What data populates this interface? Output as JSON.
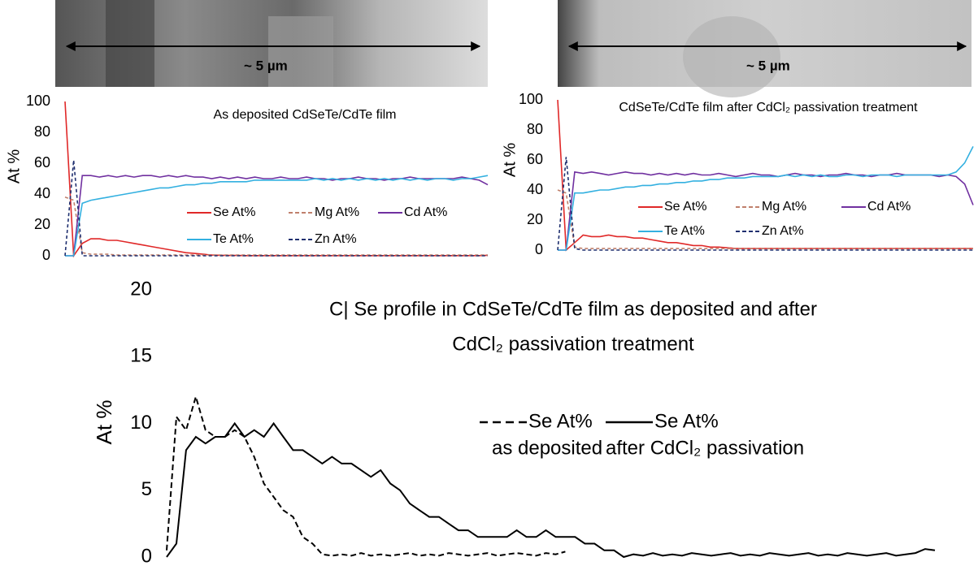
{
  "micrographs": [
    {
      "scale_label": "~ 5 µm"
    },
    {
      "scale_label": "~ 5 µm"
    }
  ],
  "chart_data": [
    {
      "type": "line",
      "title": [
        "As deposited CdSeTe/CdTe film"
      ],
      "ylabel": "At %",
      "ylim": [
        0,
        100
      ],
      "yticks": [
        0,
        20,
        40,
        60,
        80,
        100
      ],
      "series": [
        {
          "name": "Se At%",
          "color": "#e02828",
          "line_style": "solid",
          "values": [
            100,
            0,
            8,
            11,
            11,
            10,
            10,
            9,
            8,
            7,
            6,
            5,
            4,
            3,
            2,
            1.5,
            1,
            0.5,
            0.3,
            0.2,
            0.2,
            0.1,
            0.1,
            0.1,
            0.1,
            0.1,
            0.1,
            0.1,
            0.1,
            0.1,
            0.1,
            0.1,
            0.1,
            0.1,
            0.1,
            0.1,
            0.1,
            0.1,
            0.1,
            0.1,
            0.1,
            0.1,
            0.1,
            0.1,
            0.1,
            0.1,
            0.1,
            0.1,
            0.1,
            0.3
          ]
        },
        {
          "name": "Mg At%",
          "color": "#c0806c",
          "line_style": "dashed",
          "values": [
            38,
            36,
            2,
            1,
            1,
            1,
            0.5,
            0.5,
            0.5,
            0.5,
            0.5,
            0.5,
            0.5,
            0.5,
            0.5,
            0.5,
            0.5,
            0.5,
            0.5,
            0.5,
            0.5,
            0.5,
            0.5,
            0.5,
            0.5,
            0.5,
            0.5,
            0.5,
            0.5,
            0.5,
            0.5,
            0.5,
            0.5,
            0.5,
            0.5,
            0.5,
            0.5,
            0.5,
            0.5,
            0.5,
            0.5,
            0.5,
            0.5,
            0.5,
            0.5,
            0.5,
            0.5,
            0.5,
            0.5,
            0.5
          ]
        },
        {
          "name": "Cd At%",
          "color": "#7030a0",
          "line_style": "solid",
          "values": [
            0,
            0,
            52,
            52,
            51,
            52,
            51,
            52,
            51,
            52,
            52,
            51,
            52,
            51,
            52,
            51,
            51,
            50,
            51,
            50,
            51,
            50,
            51,
            50,
            50,
            51,
            50,
            50,
            51,
            50,
            50,
            49,
            50,
            50,
            51,
            50,
            50,
            49,
            50,
            50,
            51,
            50,
            50,
            50,
            50,
            50,
            51,
            50,
            49,
            46
          ]
        },
        {
          "name": "Te At%",
          "color": "#33b0e0",
          "line_style": "solid",
          "values": [
            0,
            0,
            34,
            36,
            37,
            38,
            39,
            40,
            41,
            42,
            43,
            44,
            44,
            45,
            46,
            46,
            47,
            47,
            48,
            48,
            48,
            48,
            49,
            49,
            49,
            49,
            49,
            49,
            49,
            50,
            49,
            50,
            49,
            50,
            49,
            50,
            49,
            50,
            49,
            50,
            49,
            50,
            49,
            50,
            50,
            49,
            50,
            50,
            51,
            52
          ]
        },
        {
          "name": "Zn At%",
          "color": "#1f2f6f",
          "line_style": "dashed",
          "values": [
            0,
            62,
            0,
            0,
            0,
            0,
            0,
            0,
            0,
            0,
            0,
            0,
            0,
            0,
            0,
            0,
            0,
            0,
            0,
            0,
            0,
            0,
            0,
            0,
            0,
            0,
            0,
            0,
            0,
            0,
            0,
            0,
            0,
            0,
            0,
            0,
            0,
            0,
            0,
            0,
            0,
            0,
            0,
            0,
            0,
            0,
            0,
            0,
            0,
            0
          ]
        }
      ]
    },
    {
      "type": "line",
      "title": [
        "CdSeTe/CdTe film after CdCl₂ passivation treatment"
      ],
      "ylabel": "At %",
      "ylim": [
        0,
        100
      ],
      "yticks": [
        0,
        20,
        40,
        60,
        80,
        100
      ],
      "series": [
        {
          "name": "Se At%",
          "color": "#e02828",
          "line_style": "solid",
          "values": [
            100,
            0,
            5,
            10,
            9,
            9,
            10,
            9,
            9,
            8,
            8,
            7,
            6,
            5,
            5,
            4,
            3,
            3,
            2,
            2,
            1.5,
            1,
            1,
            1,
            1,
            1,
            1,
            1,
            1,
            1,
            1,
            1,
            1,
            1,
            1,
            1,
            1,
            1,
            1,
            1,
            1,
            1,
            1,
            1,
            1,
            1,
            1,
            1,
            1,
            1
          ]
        },
        {
          "name": "Mg At%",
          "color": "#c0806c",
          "line_style": "dashed",
          "values": [
            40,
            38,
            2,
            1,
            1,
            1,
            1,
            1,
            1,
            1,
            1,
            1,
            1,
            1,
            1,
            1,
            1,
            1,
            1,
            1,
            1,
            1,
            1,
            1,
            1,
            1,
            1,
            1,
            1,
            1,
            1,
            1,
            1,
            1,
            1,
            1,
            1,
            1,
            1,
            1,
            1,
            1,
            1,
            1,
            1,
            1,
            1,
            1,
            1,
            1
          ]
        },
        {
          "name": "Cd At%",
          "color": "#7030a0",
          "line_style": "solid",
          "values": [
            0,
            0,
            52,
            51,
            52,
            51,
            50,
            51,
            52,
            51,
            51,
            50,
            51,
            50,
            51,
            50,
            51,
            50,
            50,
            51,
            50,
            49,
            50,
            51,
            50,
            50,
            49,
            50,
            51,
            50,
            50,
            49,
            50,
            50,
            51,
            50,
            50,
            49,
            50,
            50,
            51,
            50,
            50,
            50,
            50,
            49,
            50,
            49,
            44,
            30
          ]
        },
        {
          "name": "Te At%",
          "color": "#33b0e0",
          "line_style": "solid",
          "values": [
            0,
            0,
            38,
            38,
            39,
            40,
            40,
            41,
            42,
            42,
            43,
            43,
            44,
            44,
            45,
            45,
            46,
            46,
            47,
            47,
            48,
            48,
            48,
            49,
            49,
            49,
            49,
            50,
            49,
            50,
            49,
            50,
            49,
            49,
            50,
            50,
            49,
            50,
            50,
            50,
            49,
            50,
            50,
            50,
            50,
            50,
            50,
            52,
            58,
            69
          ]
        },
        {
          "name": "Zn At%",
          "color": "#1f2f6f",
          "line_style": "dashed",
          "values": [
            0,
            62,
            1,
            0,
            0,
            0,
            0,
            0,
            0,
            0,
            0,
            0,
            0,
            0,
            0,
            0,
            0,
            0,
            0,
            0,
            0,
            0,
            0,
            0,
            0,
            0,
            0,
            0,
            0,
            0,
            0,
            0,
            0,
            0,
            0,
            0,
            0,
            0,
            0,
            0,
            0,
            0,
            0,
            0,
            0,
            0,
            0,
            0,
            0,
            0
          ]
        }
      ]
    },
    {
      "type": "line",
      "title": [
        "C|  Se  profile in CdSeTe/CdTe film as deposited and after",
        "CdCl₂ passivation treatment"
      ],
      "ylabel": "At %",
      "ylim": [
        0,
        20
      ],
      "yticks": [
        0,
        5,
        10,
        15,
        20
      ],
      "series": [
        {
          "name": "Se At%",
          "legend_sublabel": "as deposited",
          "color": "#000000",
          "line_style": "dashed",
          "values": [
            0.5,
            10.5,
            9.5,
            12,
            9.5,
            9,
            9,
            9.5,
            9,
            7.5,
            5.5,
            4.5,
            3.5,
            3,
            1.5,
            1,
            0.2,
            0.1,
            0.2,
            0.1,
            0.3,
            0.1,
            0.2,
            0.1,
            0.2,
            0.3,
            0.1,
            0.2,
            0.1,
            0.3,
            0.2,
            0.1,
            0.2,
            0.3,
            0.1,
            0.2,
            0.3,
            0.2,
            0.1,
            0.3,
            0.2,
            0.4,
            null,
            null,
            null,
            null,
            null,
            null,
            null,
            null,
            null,
            null,
            null,
            null,
            null,
            null,
            null,
            null,
            null,
            null,
            null,
            null,
            null,
            null,
            null,
            null,
            null,
            null,
            null,
            null,
            null,
            null,
            null,
            null,
            null,
            null,
            null,
            null,
            null,
            null
          ]
        },
        {
          "name": "Se At%",
          "legend_sublabel": "after CdCl₂ passivation",
          "color": "#000000",
          "line_style": "solid",
          "values": [
            0,
            1,
            8,
            9,
            8.5,
            9,
            9,
            10,
            9,
            9.5,
            9,
            10,
            9,
            8,
            8,
            7.5,
            7,
            7.5,
            7,
            7,
            6.5,
            6,
            6.5,
            5.5,
            5,
            4,
            3.5,
            3,
            3,
            2.5,
            2,
            2,
            1.5,
            1.5,
            1.5,
            1.5,
            2,
            1.5,
            1.5,
            2,
            1.5,
            1.5,
            1.5,
            1,
            1,
            0.5,
            0.5,
            0,
            0.2,
            0.1,
            0.3,
            0.1,
            0.2,
            0.1,
            0.3,
            0.2,
            0.1,
            0.2,
            0.3,
            0.1,
            0.2,
            0.1,
            0.3,
            0.2,
            0.1,
            0.2,
            0.3,
            0.1,
            0.2,
            0.1,
            0.3,
            0.2,
            0.1,
            0.2,
            0.3,
            0.1,
            0.2,
            0.3,
            0.6,
            0.5
          ]
        }
      ]
    }
  ]
}
